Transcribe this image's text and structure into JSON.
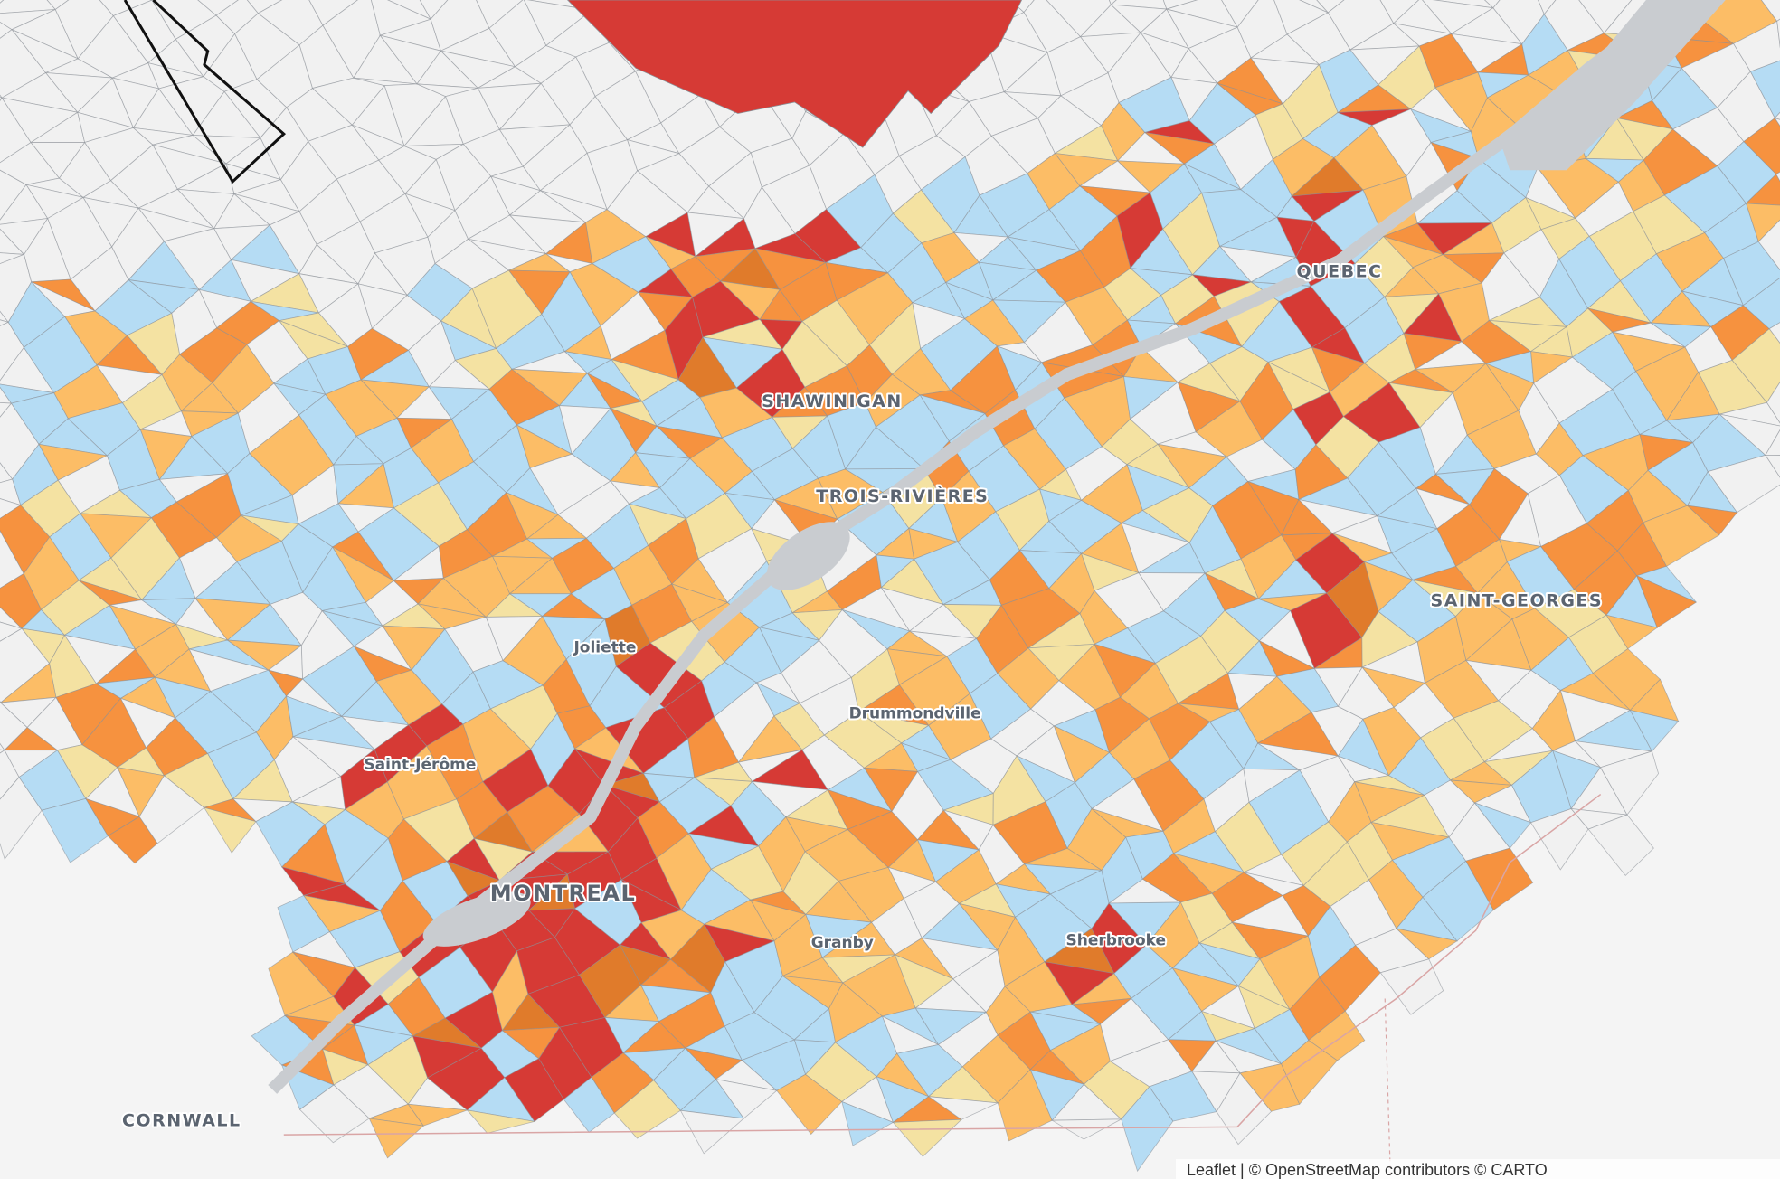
{
  "cities": [
    "QUEBEC",
    "SHAWINIGAN",
    "TROIS-RIVIÈRES",
    "SAINT-GEORGES",
    "Joliette",
    "Drummondville",
    "Saint-Jérôme",
    "MONTREAL",
    "Granby",
    "Sherbrooke",
    "CORNWALL"
  ],
  "attribution": "Leaflet | © OpenStreetMap contributors © CARTO"
}
